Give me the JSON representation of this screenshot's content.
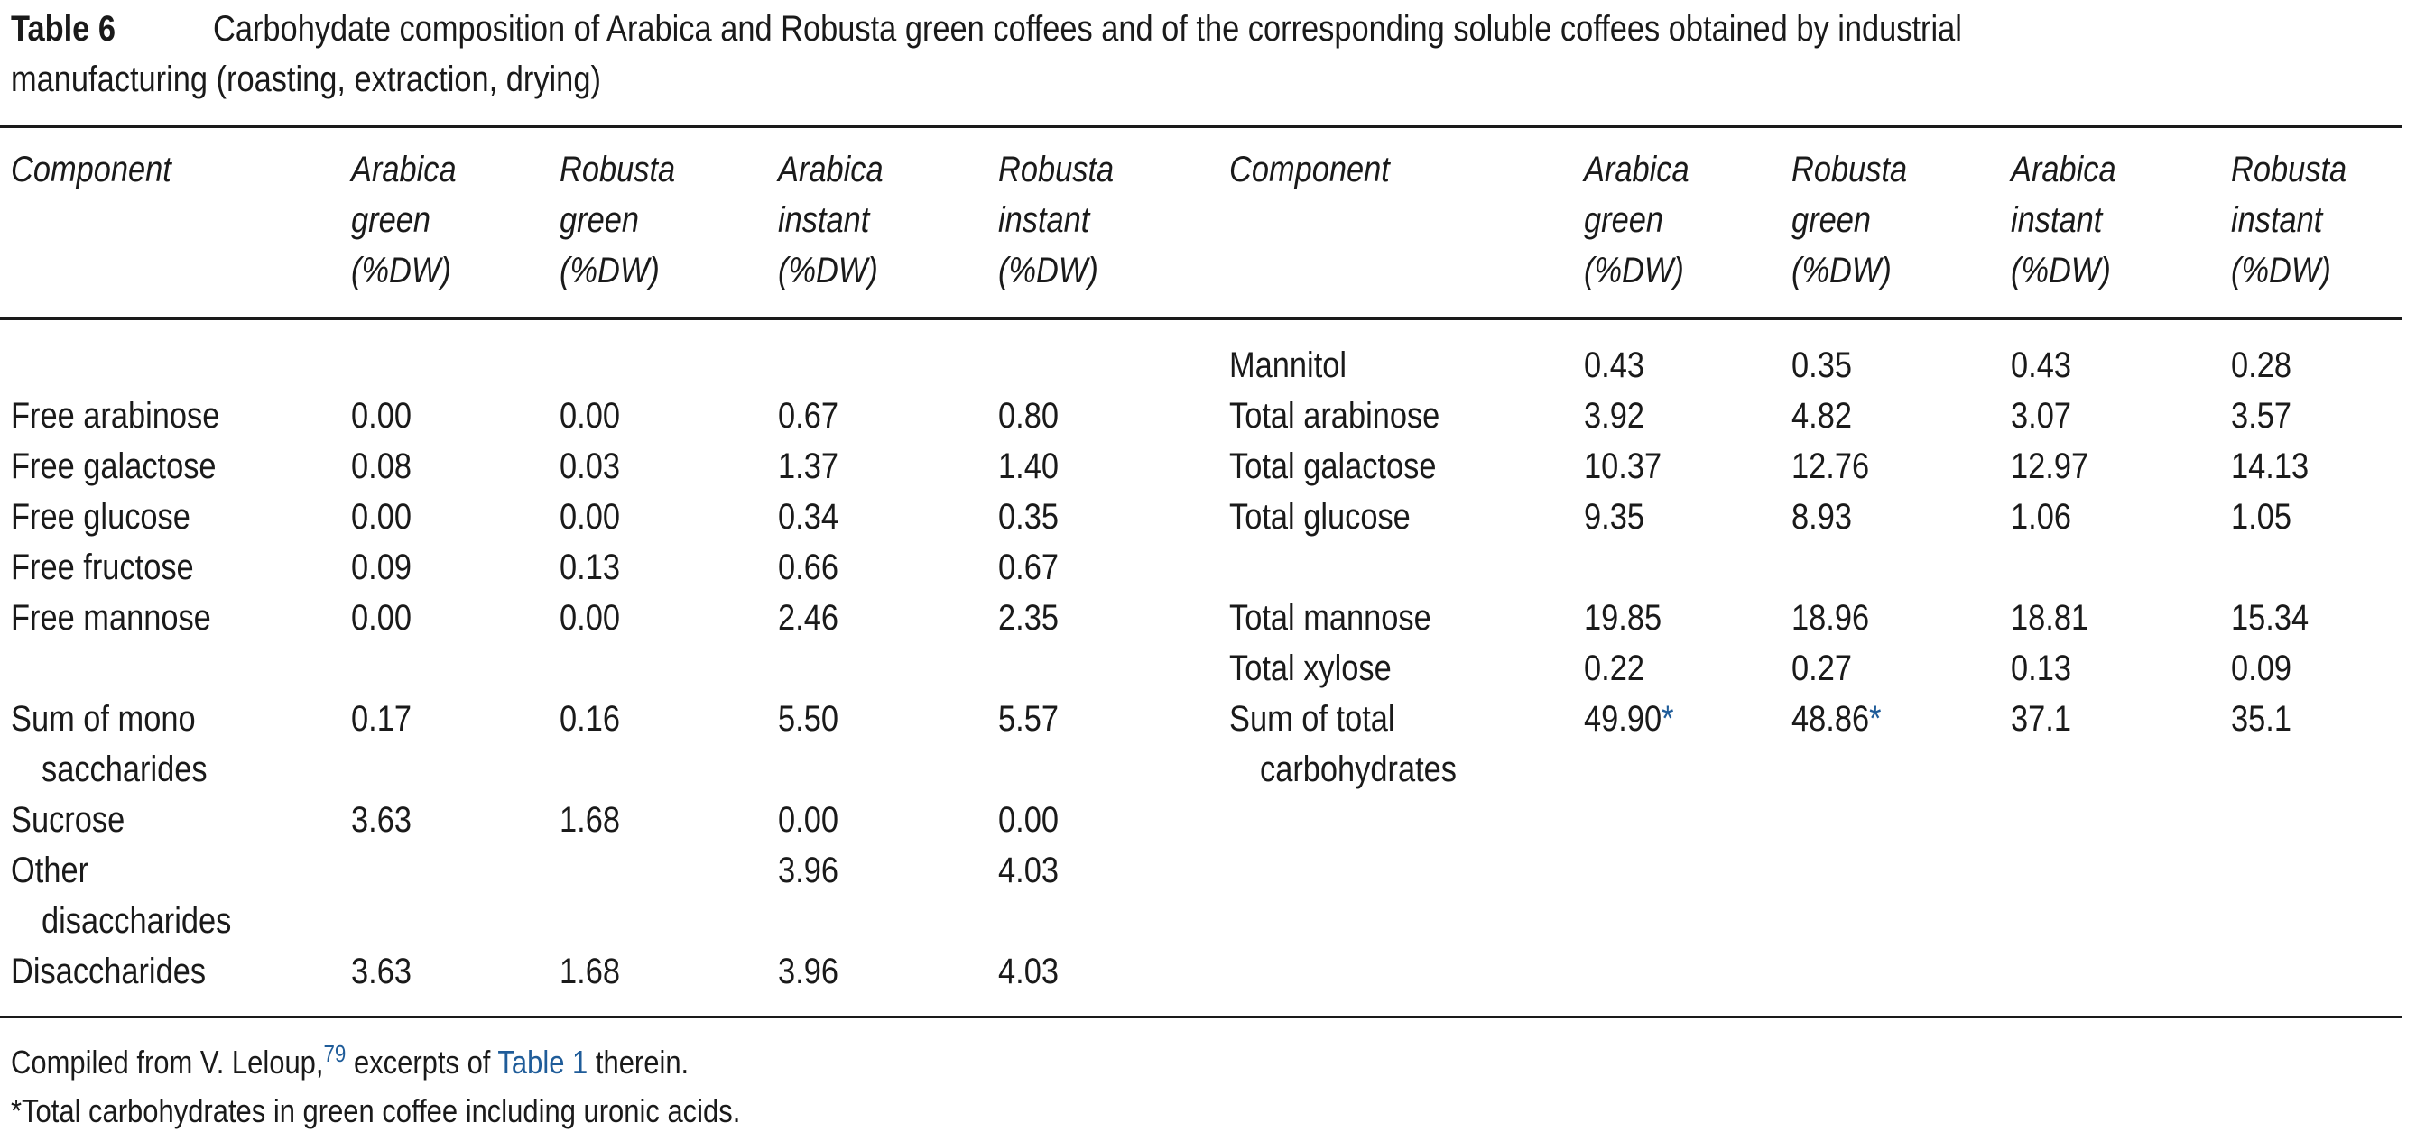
{
  "title": {
    "label": "Table 6",
    "caption_lines": [
      "Carbohydate composition of Arabica and Robusta green coffees and of the corresponding soluble coffees obtained by industrial",
      "manufacturing (roasting, extraction, drying)"
    ]
  },
  "table": {
    "left": {
      "header": {
        "component": "Component",
        "columns": [
          [
            "Arabica",
            "green",
            "(%DW)"
          ],
          [
            "Robusta",
            "green",
            "(%DW)"
          ],
          [
            "Arabica",
            "instant",
            "(%DW)"
          ],
          [
            "Robusta",
            "instant",
            "(%DW)"
          ]
        ]
      },
      "rows": [
        {
          "component": [
            "Free arabinose"
          ],
          "values": [
            "0.00",
            "0.00",
            "0.67",
            "0.80"
          ]
        },
        {
          "component": [
            "Free galactose"
          ],
          "values": [
            "0.08",
            "0.03",
            "1.37",
            "1.40"
          ]
        },
        {
          "component": [
            "Free glucose"
          ],
          "values": [
            "0.00",
            "0.00",
            "0.34",
            "0.35"
          ]
        },
        {
          "component": [
            "Free fructose"
          ],
          "values": [
            "0.09",
            "0.13",
            "0.66",
            "0.67"
          ]
        },
        {
          "component": [
            "Free mannose"
          ],
          "values": [
            "0.00",
            "0.00",
            "2.46",
            "2.35"
          ]
        },
        {
          "component": [
            "Sum of mono",
            "saccharides"
          ],
          "values": [
            "0.17",
            "0.16",
            "5.50",
            "5.57"
          ]
        },
        {
          "component": [
            "Sucrose"
          ],
          "values": [
            "3.63",
            "1.68",
            "0.00",
            "0.00"
          ]
        },
        {
          "component": [
            "Other",
            "disaccharides"
          ],
          "values": [
            null,
            null,
            "3.96",
            "4.03"
          ]
        },
        {
          "component": [
            "Disaccharides"
          ],
          "values": [
            "3.63",
            "1.68",
            "3.96",
            "4.03"
          ]
        }
      ]
    },
    "right": {
      "header": {
        "component": "Component",
        "columns": [
          [
            "Arabica",
            "green",
            "(%DW)"
          ],
          [
            "Robusta",
            "green",
            "(%DW)"
          ],
          [
            "Arabica",
            "instant",
            "(%DW)"
          ],
          [
            "Robusta",
            "instant",
            "(%DW)"
          ]
        ]
      },
      "rows": [
        {
          "component": [
            "Mannitol"
          ],
          "values": [
            "0.43",
            "0.35",
            "0.43",
            "0.28"
          ]
        },
        {
          "component": [
            "Total arabinose"
          ],
          "values": [
            "3.92",
            "4.82",
            "3.07",
            "3.57"
          ]
        },
        {
          "component": [
            "Total galactose"
          ],
          "values": [
            "10.37",
            "12.76",
            "12.97",
            "14.13"
          ]
        },
        {
          "component": [
            "Total glucose"
          ],
          "values": [
            "9.35",
            "8.93",
            "1.06",
            "1.05"
          ]
        },
        {
          "component": [
            "Total mannose"
          ],
          "values": [
            "19.85",
            "18.96",
            "18.81",
            "15.34"
          ]
        },
        {
          "component": [
            "Total xylose"
          ],
          "values": [
            "0.22",
            "0.27",
            "0.13",
            "0.09"
          ]
        },
        {
          "component": [
            "Sum of total",
            "carbohydrates"
          ],
          "values": [
            {
              "text": "49.90",
              "note": "*"
            },
            {
              "text": "48.86",
              "note": "*"
            },
            "37.1",
            "35.1"
          ]
        }
      ]
    }
  },
  "footnotes": {
    "source": {
      "before": "Compiled from V. Leloup,",
      "ref": "79",
      "middle": " excerpts of ",
      "link": "Table 1",
      "after": " therein."
    },
    "note": "*Total carbohydrates in green coffee including uronic acids."
  }
}
